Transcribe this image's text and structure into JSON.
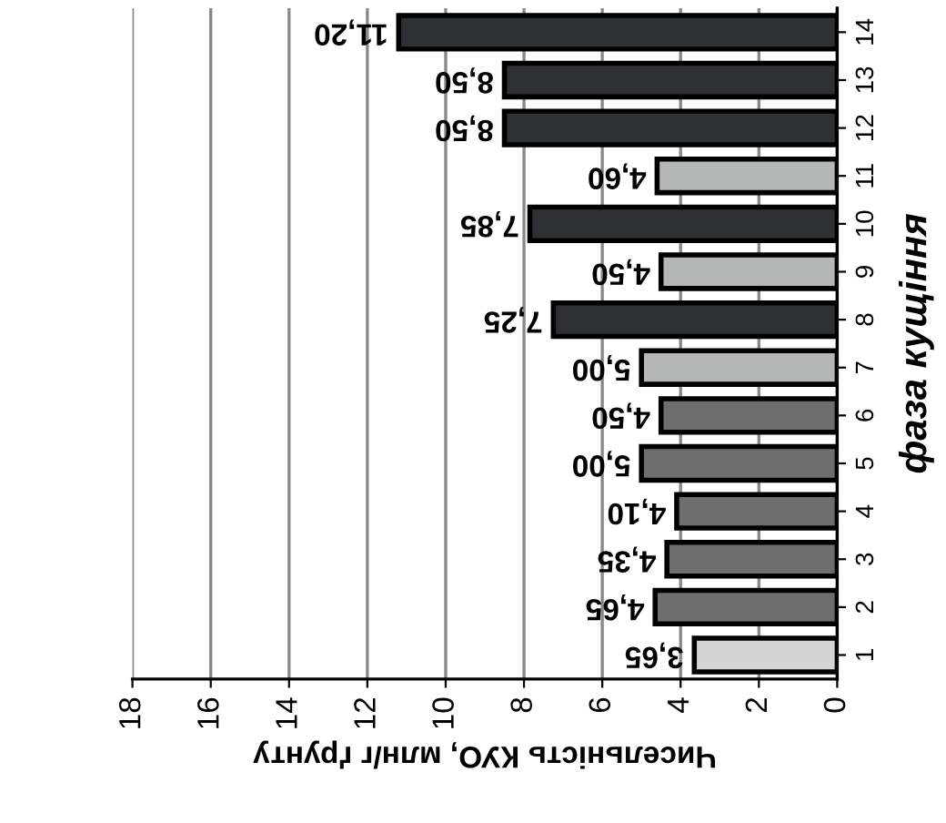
{
  "chart_data": {
    "type": "bar",
    "orientation": "horizontal",
    "xlabel": "Чисельність КУО, млн/г ґрунту",
    "ylabel": "фаза кущіння",
    "categories": [
      "14",
      "13",
      "12",
      "11",
      "10",
      "9",
      "8",
      "7",
      "6",
      "5",
      "4",
      "3",
      "2",
      "1"
    ],
    "values": [
      11.2,
      8.5,
      8.5,
      4.6,
      7.85,
      4.5,
      7.25,
      5.0,
      4.5,
      5.0,
      4.1,
      4.35,
      4.65,
      3.65
    ],
    "value_labels": [
      "11,20",
      "8,50",
      "8,50",
      "4,60",
      "7,85",
      "4,50",
      "7,25",
      "5,00",
      "4,50",
      "5,00",
      "4,10",
      "4,35",
      "4,65",
      "3,65"
    ],
    "colors": [
      "#2e3033",
      "#2e3033",
      "#2e3033",
      "#b5b7b7",
      "#2e3033",
      "#b5b7b7",
      "#2e3033",
      "#b5b7b7",
      "#6e6e6e",
      "#6e6e6e",
      "#6e6e6e",
      "#6e6e6e",
      "#6e6e6e",
      "#d4d4d4"
    ],
    "xlim": [
      18,
      0
    ],
    "xticks": [
      0,
      2,
      4,
      6,
      8,
      10,
      12,
      14,
      16,
      18
    ],
    "grid": "x",
    "legend": false
  }
}
